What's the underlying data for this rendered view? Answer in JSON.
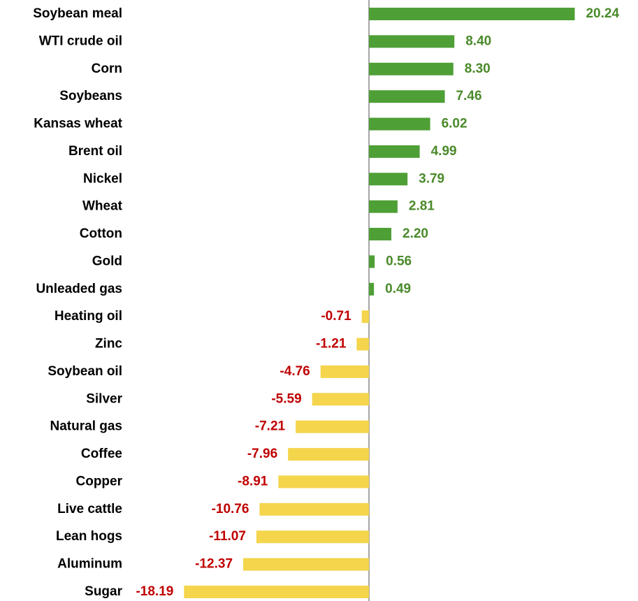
{
  "chart_data": {
    "type": "hbar",
    "categories": [
      "Soybean meal",
      "WTI crude oil",
      "Corn",
      "Soybeans",
      "Kansas wheat",
      "Brent oil",
      "Nickel",
      "Wheat",
      "Cotton",
      "Gold",
      "Unleaded gas",
      "Heating oil",
      "Zinc",
      "Soybean oil",
      "Silver",
      "Natural gas",
      "Coffee",
      "Copper",
      "Live cattle",
      "Lean hogs",
      "Aluminum",
      "Sugar"
    ],
    "values": [
      20.24,
      8.4,
      8.3,
      7.46,
      6.02,
      4.99,
      3.79,
      2.81,
      2.2,
      0.56,
      0.49,
      -0.71,
      -1.21,
      -4.76,
      -5.59,
      -7.21,
      -7.96,
      -8.91,
      -10.76,
      -11.07,
      -12.37,
      -18.19
    ],
    "value_labels": [
      "20.24",
      "8.40",
      "8.30",
      "7.46",
      "6.02",
      "4.99",
      "3.79",
      "2.81",
      "2.20",
      "0.56",
      "0.49",
      "-0.71",
      "-1.21",
      "-4.76",
      "-5.59",
      "-7.21",
      "-7.96",
      "-8.91",
      "-10.76",
      "-11.07",
      "-12.37",
      "-18.19"
    ],
    "colors": {
      "positive_bar": "#4e9f35",
      "negative_bar": "#f4d54c",
      "positive_label": "#4a8a2a",
      "negative_label": "#c00000"
    }
  }
}
